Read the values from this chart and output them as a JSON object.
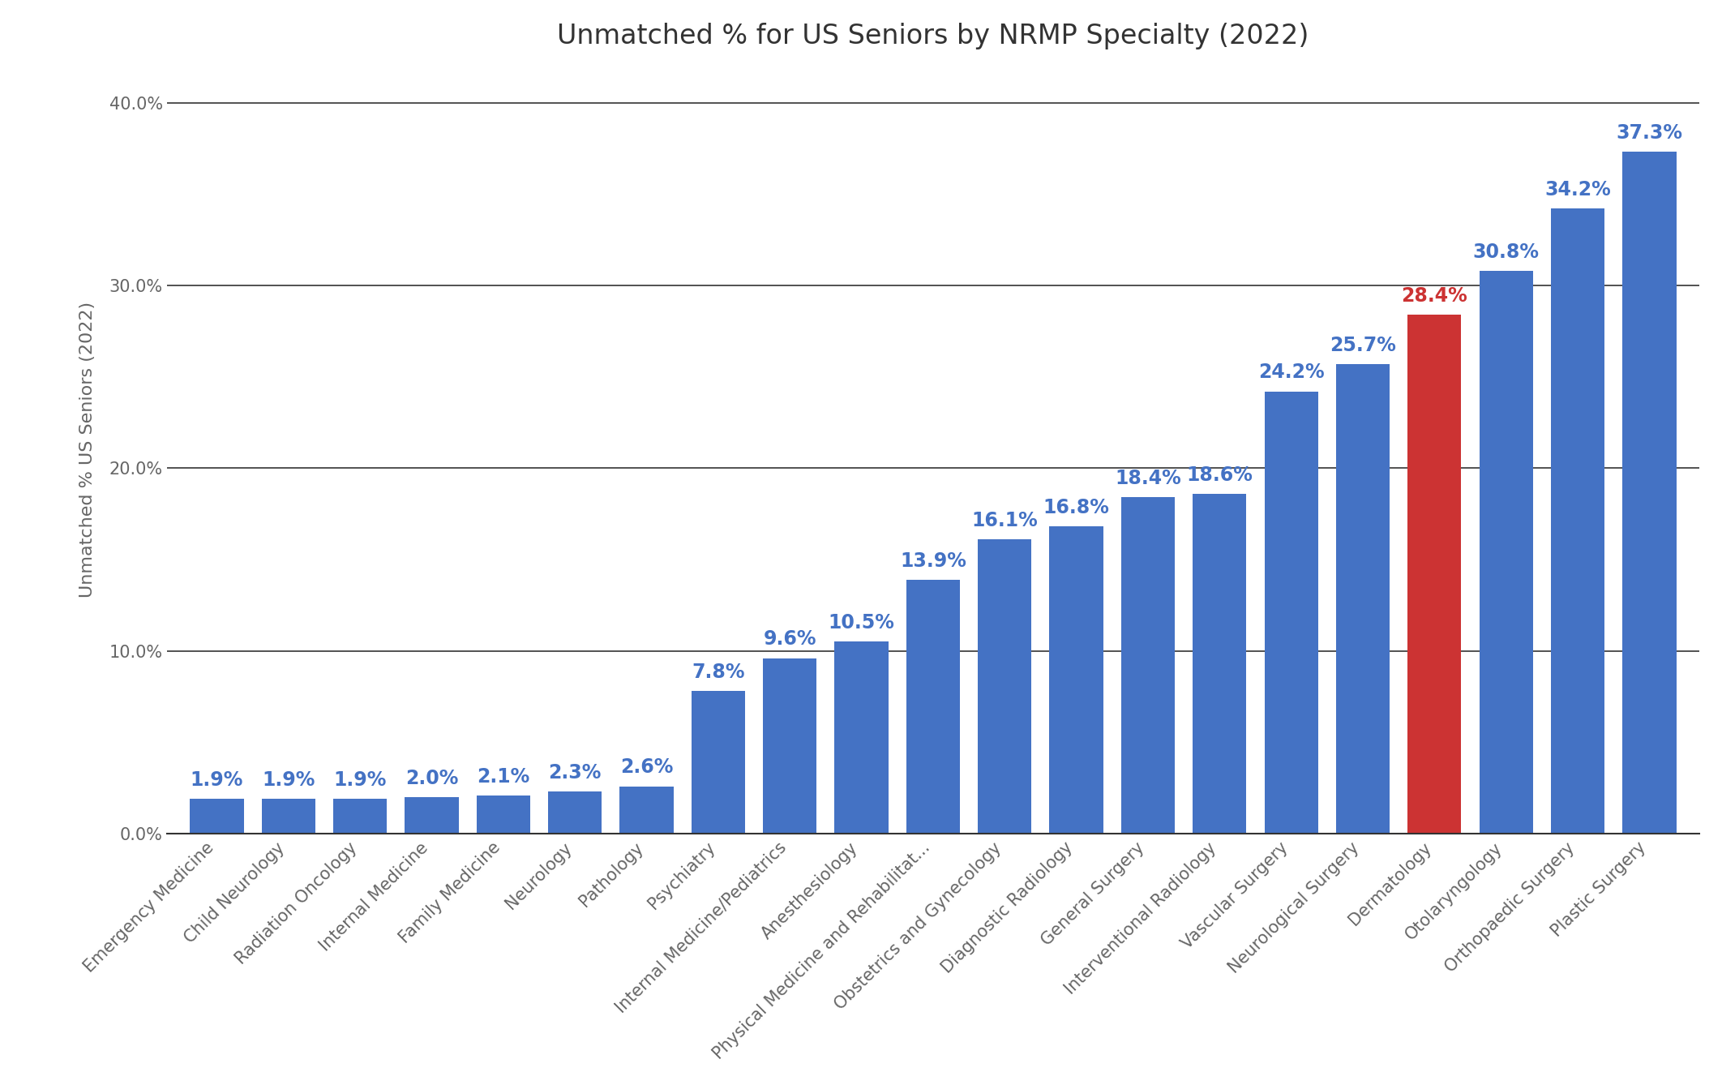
{
  "title": "Unmatched % for US Seniors by NRMP Specialty (2022)",
  "ylabel": "Unmatched % US Seniors (2022)",
  "categories": [
    "Emergency Medicine",
    "Child Neurology",
    "Radiation Oncology",
    "Internal Medicine",
    "Family Medicine",
    "Neurology",
    "Pathology",
    "Psychiatry",
    "Internal Medicine/Pediatrics",
    "Anesthesiology",
    "Physical Medicine and Rehabilitat...",
    "Obstetrics and Gynecology",
    "Diagnostic Radiology",
    "General Surgery",
    "Interventional Radiology",
    "Vascular Surgery",
    "Neurological Surgery",
    "Dermatology",
    "Otolaryngology",
    "Orthopaedic Surgery",
    "Plastic Surgery"
  ],
  "values": [
    1.9,
    1.9,
    1.9,
    2.0,
    2.1,
    2.3,
    2.6,
    7.8,
    9.6,
    10.5,
    13.9,
    16.1,
    16.8,
    18.4,
    18.6,
    24.2,
    25.7,
    28.4,
    30.8,
    34.2,
    37.3
  ],
  "bar_colors": [
    "#4472C4",
    "#4472C4",
    "#4472C4",
    "#4472C4",
    "#4472C4",
    "#4472C4",
    "#4472C4",
    "#4472C4",
    "#4472C4",
    "#4472C4",
    "#4472C4",
    "#4472C4",
    "#4472C4",
    "#4472C4",
    "#4472C4",
    "#4472C4",
    "#4472C4",
    "#CC3333",
    "#4472C4",
    "#4472C4",
    "#4472C4"
  ],
  "label_colors": [
    "#4472C4",
    "#4472C4",
    "#4472C4",
    "#4472C4",
    "#4472C4",
    "#4472C4",
    "#4472C4",
    "#4472C4",
    "#4472C4",
    "#4472C4",
    "#4472C4",
    "#4472C4",
    "#4472C4",
    "#4472C4",
    "#4472C4",
    "#4472C4",
    "#4472C4",
    "#CC3333",
    "#4472C4",
    "#4472C4",
    "#4472C4"
  ],
  "ylim": [
    0,
    42
  ],
  "yticks": [
    0.0,
    10.0,
    20.0,
    30.0,
    40.0
  ],
  "ytick_labels": [
    "0.0%",
    "10.0%",
    "20.0%",
    "30.0%",
    "40.0%"
  ],
  "background_color": "#FFFFFF",
  "grid_color": "#333333",
  "title_fontsize": 24,
  "ylabel_fontsize": 16,
  "tick_fontsize": 15,
  "bar_label_fontsize": 17,
  "bar_width": 0.75
}
